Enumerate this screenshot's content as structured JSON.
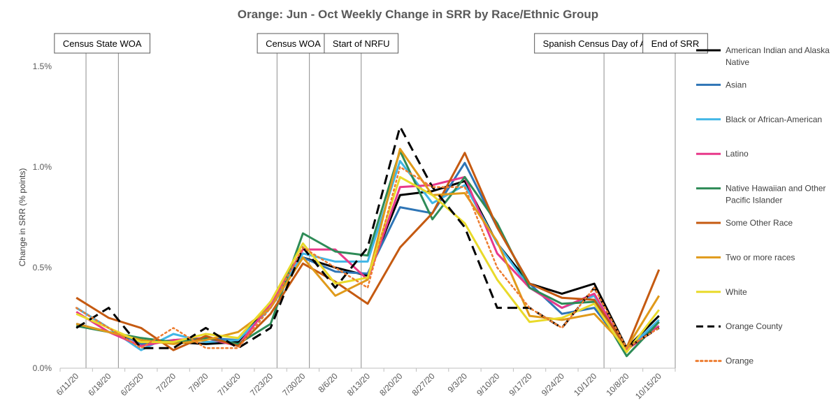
{
  "chart_data": {
    "type": "line",
    "title": "Orange: Jun - Oct Weekly Change in SRR by Race/Ethnic Group",
    "ylabel": "Change in SRR (% points)",
    "xlabel": "",
    "ylim": [
      0,
      1.5
    ],
    "yticks": [
      {
        "value": 0,
        "label": "0.0%"
      },
      {
        "value": 0.5,
        "label": "0.5%"
      },
      {
        "value": 1.0,
        "label": "1.0%"
      },
      {
        "value": 1.5,
        "label": "1.5%"
      }
    ],
    "grid": false,
    "legend_position": "right",
    "x": [
      "6/11/20",
      "6/18/20",
      "6/25/20",
      "7/2/20",
      "7/9/20",
      "7/16/20",
      "7/23/20",
      "7/30/20",
      "8/6/20",
      "8/13/20",
      "8/20/20",
      "8/27/20",
      "9/3/20",
      "9/10/20",
      "9/17/20",
      "9/24/20",
      "10/1/20",
      "10/8/20",
      "10/15/20"
    ],
    "events": [
      {
        "label": "Census State WOA",
        "start": 0.8,
        "end": 1.8
      },
      {
        "label": "Census WOA",
        "start": 6.7,
        "end": 7.7
      },
      {
        "label": "Start of NRFU",
        "start": 9.3,
        "end": 9.3
      },
      {
        "label": "Spanish Census Day of Action",
        "start": 16.8,
        "end": 16.8
      },
      {
        "label": "End of SRR",
        "start": 19.0,
        "end": 19.0
      }
    ],
    "series": [
      {
        "name": "American Indian and Alaska Native",
        "color": "#000000",
        "style": "solid",
        "values": [
          0.22,
          0.18,
          0.13,
          0.13,
          0.12,
          0.13,
          0.33,
          0.55,
          0.5,
          0.46,
          0.86,
          0.88,
          0.93,
          0.62,
          0.42,
          0.37,
          0.42,
          0.1,
          0.26
        ]
      },
      {
        "name": "Asian",
        "color": "#2E75B6",
        "style": "solid",
        "values": [
          0.3,
          0.2,
          0.12,
          0.14,
          0.15,
          0.14,
          0.3,
          0.55,
          0.48,
          0.47,
          0.8,
          0.77,
          1.02,
          0.7,
          0.42,
          0.27,
          0.3,
          0.09,
          0.23
        ]
      },
      {
        "name": "Black or African-American",
        "color": "#41B6E6",
        "style": "solid",
        "values": [
          0.3,
          0.2,
          0.09,
          0.17,
          0.13,
          0.14,
          0.3,
          0.57,
          0.53,
          0.53,
          1.03,
          0.82,
          0.91,
          0.62,
          0.4,
          0.3,
          0.36,
          0.09,
          0.24
        ]
      },
      {
        "name": "Latino",
        "color": "#E8388A",
        "style": "solid",
        "values": [
          0.28,
          0.18,
          0.11,
          0.14,
          0.15,
          0.11,
          0.32,
          0.59,
          0.59,
          0.44,
          0.9,
          0.91,
          0.95,
          0.57,
          0.4,
          0.3,
          0.37,
          0.09,
          0.21
        ]
      },
      {
        "name": "Native Hawaiian and Other Pacific Islander",
        "color": "#2E8B57",
        "style": "solid",
        "values": [
          0.21,
          0.18,
          0.15,
          0.13,
          0.15,
          0.12,
          0.22,
          0.67,
          0.58,
          0.56,
          1.08,
          0.74,
          0.95,
          0.72,
          0.4,
          0.32,
          0.33,
          0.06,
          0.23
        ]
      },
      {
        "name": "Some Other Race",
        "color": "#C55A11",
        "style": "solid",
        "values": [
          0.35,
          0.25,
          0.2,
          0.09,
          0.16,
          0.11,
          0.27,
          0.52,
          0.43,
          0.32,
          0.6,
          0.77,
          1.07,
          0.7,
          0.42,
          0.35,
          0.34,
          0.1,
          0.49
        ]
      },
      {
        "name": "Two or more races",
        "color": "#E09A1A",
        "style": "solid",
        "values": [
          0.22,
          0.18,
          0.14,
          0.12,
          0.14,
          0.18,
          0.3,
          0.55,
          0.36,
          0.44,
          1.09,
          0.86,
          0.87,
          0.63,
          0.26,
          0.24,
          0.27,
          0.1,
          0.36
        ]
      },
      {
        "name": "White",
        "color": "#E9DA2A",
        "style": "solid",
        "values": [
          0.27,
          0.2,
          0.13,
          0.13,
          0.17,
          0.15,
          0.33,
          0.62,
          0.42,
          0.45,
          0.95,
          0.86,
          0.72,
          0.44,
          0.23,
          0.25,
          0.32,
          0.08,
          0.29
        ]
      },
      {
        "name": "Orange County",
        "color": "#000000",
        "style": "dashed",
        "values": [
          0.2,
          0.3,
          0.1,
          0.1,
          0.2,
          0.1,
          0.2,
          0.6,
          0.4,
          0.6,
          1.2,
          0.9,
          0.7,
          0.3,
          0.3,
          0.2,
          0.4,
          0.1,
          0.2
        ]
      },
      {
        "name": "Orange",
        "color": "#ED7D31",
        "style": "dotted",
        "values": [
          0.3,
          0.2,
          0.1,
          0.2,
          0.1,
          0.1,
          0.3,
          0.6,
          0.5,
          0.4,
          1.0,
          0.9,
          0.9,
          0.5,
          0.3,
          0.2,
          0.4,
          0.1,
          0.2
        ]
      }
    ]
  }
}
